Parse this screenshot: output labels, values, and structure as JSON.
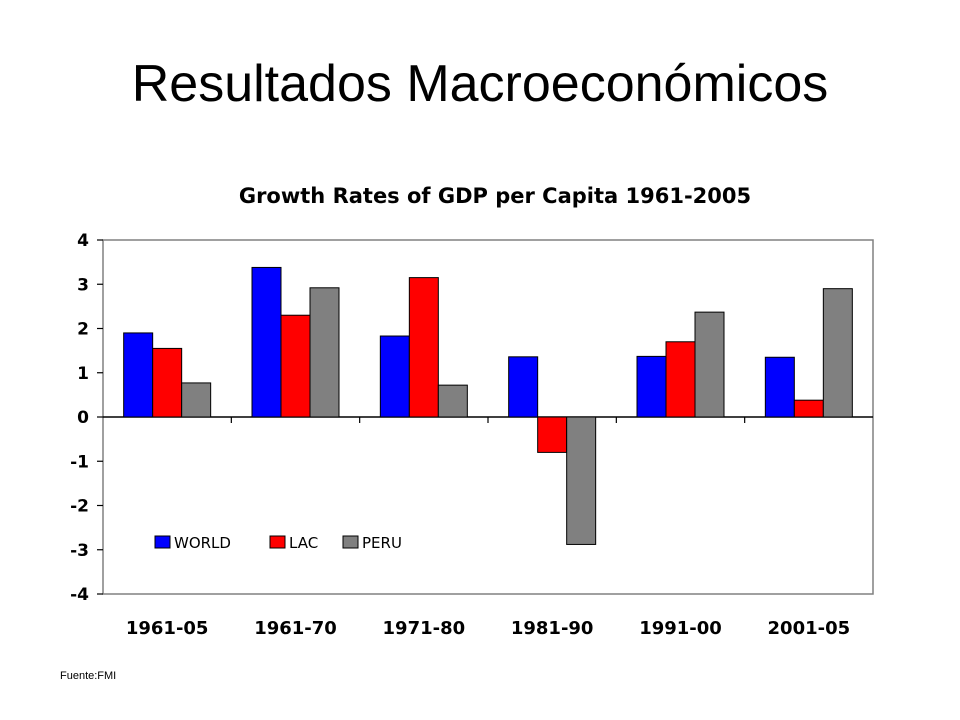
{
  "slide": {
    "title": "Resultados Macroeconómicos",
    "source": "Fuente:FMI"
  },
  "chart_data": {
    "type": "bar",
    "title": "Growth Rates of GDP per Capita 1961-2005",
    "xlabel": "",
    "ylabel": "",
    "categories": [
      "1961-05",
      "1961-70",
      "1971-80",
      "1981-90",
      "1991-00",
      "2001-05"
    ],
    "series": [
      {
        "name": "WORLD",
        "color": "#0000ff",
        "values": [
          1.9,
          3.38,
          1.83,
          1.36,
          1.37,
          1.35
        ]
      },
      {
        "name": "LAC",
        "color": "#ff0000",
        "values": [
          1.55,
          2.3,
          3.15,
          -0.8,
          1.7,
          0.38
        ]
      },
      {
        "name": "PERU",
        "color": "#808080",
        "values": [
          0.77,
          2.92,
          0.72,
          -2.88,
          2.37,
          2.9
        ]
      }
    ],
    "ylim": [
      -4,
      4
    ],
    "yticks": [
      "4",
      "3",
      "2",
      "1",
      "0",
      "-1",
      "-2",
      "-3",
      "-4"
    ],
    "grid": false,
    "legend_position": "bottom-left"
  }
}
